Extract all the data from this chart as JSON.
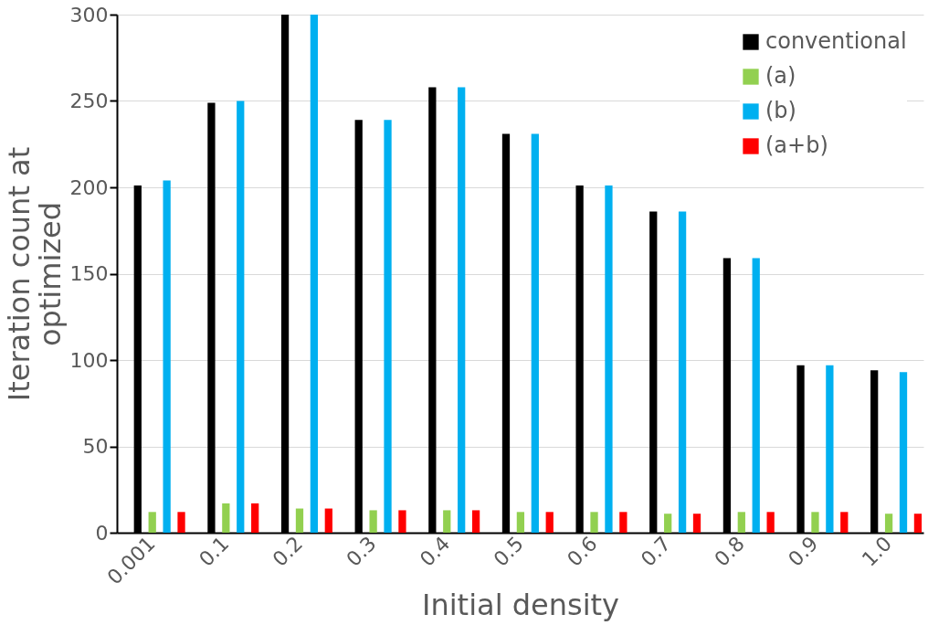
{
  "chart_data": {
    "type": "bar",
    "xlabel": "Initial density",
    "ylabel": "Iteration count at optimized",
    "categories": [
      "0.001",
      "0.1",
      "0.2",
      "0.3",
      "0.4",
      "0.5",
      "0.6",
      "0.7",
      "0.8",
      "0.9",
      "1.0"
    ],
    "series": [
      {
        "name": "conventional",
        "color": "#000000",
        "values": [
          201,
          249,
          300,
          239,
          258,
          231,
          201,
          186,
          159,
          97,
          94
        ]
      },
      {
        "name": "(a)",
        "color": "#92d050",
        "values": [
          12,
          17,
          14,
          13,
          13,
          12,
          12,
          11,
          12,
          12,
          11
        ]
      },
      {
        "name": "(b)",
        "color": "#00b0f0",
        "values": [
          204,
          250,
          300,
          239,
          258,
          231,
          201,
          186,
          159,
          97,
          93
        ]
      },
      {
        "name": "(a+b)",
        "color": "#ff0000",
        "values": [
          12,
          17,
          14,
          13,
          13,
          12,
          12,
          11,
          12,
          12,
          11
        ]
      }
    ],
    "ylim": [
      0,
      300
    ],
    "yticks": [
      0,
      50,
      100,
      150,
      200,
      250,
      300
    ],
    "grid": "y",
    "legend": "top right"
  }
}
